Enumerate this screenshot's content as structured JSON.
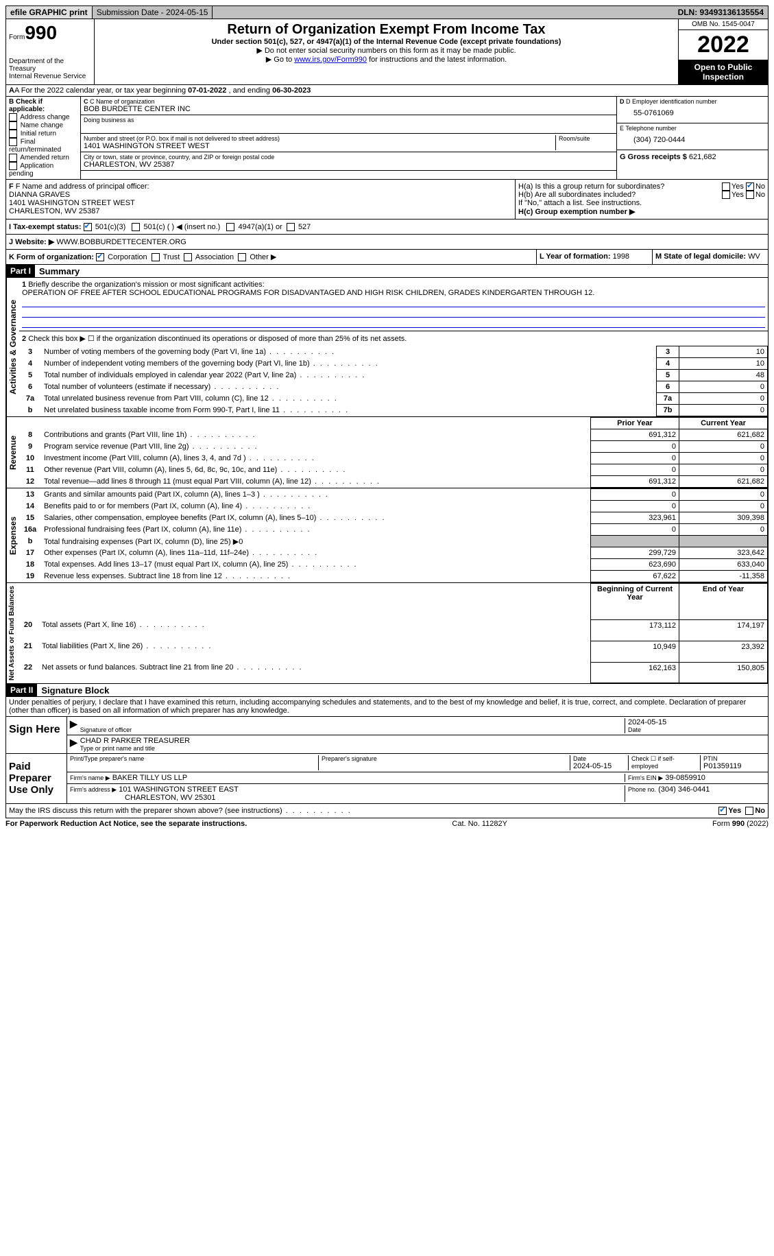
{
  "topbar": {
    "efile": "efile GRAPHIC print",
    "submission": "Submission Date - 2024-05-15",
    "dln": "DLN: 93493136135554"
  },
  "header": {
    "form_label": "Form",
    "form_number": "990",
    "title": "Return of Organization Exempt From Income Tax",
    "subtitle": "Under section 501(c), 527, or 4947(a)(1) of the Internal Revenue Code (except private foundations)",
    "note1": "▶ Do not enter social security numbers on this form as it may be made public.",
    "note2_pre": "▶ Go to ",
    "note2_link": "www.irs.gov/Form990",
    "note2_post": " for instructions and the latest information.",
    "dept": "Department of the Treasury",
    "irs": "Internal Revenue Service",
    "omb": "OMB No. 1545-0047",
    "year": "2022",
    "open": "Open to Public Inspection"
  },
  "rowA": {
    "text_pre": "A For the 2022 calendar year, or tax year beginning ",
    "begin": "07-01-2022",
    "mid": " , and ending ",
    "end": "06-30-2023"
  },
  "colB": {
    "label": "B Check if applicable:",
    "opts": [
      "Address change",
      "Name change",
      "Initial return",
      "Final return/terminated",
      "Amended return",
      "Application pending"
    ]
  },
  "colC": {
    "name_label": "C Name of organization",
    "name": "BOB BURDETTE CENTER INC",
    "dba_label": "Doing business as",
    "street_label": "Number and street (or P.O. box if mail is not delivered to street address)",
    "room_label": "Room/suite",
    "street": "1401 WASHINGTON STREET WEST",
    "city_label": "City or town, state or province, country, and ZIP or foreign postal code",
    "city": "CHARLESTON, WV  25387"
  },
  "colD": {
    "ein_label": "D Employer identification number",
    "ein": "55-0761069",
    "phone_label": "E Telephone number",
    "phone": "(304) 720-0444",
    "gross_label": "G Gross receipts $",
    "gross": "621,682"
  },
  "rowF": {
    "label": "F Name and address of principal officer:",
    "name": "DIANNA GRAVES",
    "addr1": "1401 WASHINGTON STREET WEST",
    "addr2": "CHARLESTON, WV  25387"
  },
  "rowH": {
    "ha": "H(a) Is this a group return for subordinates?",
    "hb": "H(b) Are all subordinates included?",
    "hb_note": "If \"No,\" attach a list. See instructions.",
    "hc": "H(c) Group exemption number ▶",
    "yes": "Yes",
    "no": "No"
  },
  "rowI": {
    "label": "I    Tax-exempt status:",
    "o1": "501(c)(3)",
    "o2": "501(c) (   ) ◀ (insert no.)",
    "o3": "4947(a)(1) or",
    "o4": "527"
  },
  "rowJ": {
    "label": "J   Website: ▶",
    "value": "WWW.BOBBURDETTECENTER.ORG"
  },
  "rowK": {
    "label": "K Form of organization:",
    "corp": "Corporation",
    "trust": "Trust",
    "assoc": "Association",
    "other": "Other ▶"
  },
  "rowL": {
    "label": "L Year of formation:",
    "value": "1998"
  },
  "rowM": {
    "label": "M State of legal domicile:",
    "value": "WV"
  },
  "part1": {
    "header": "Part I",
    "title": "Summary",
    "q1_label": "Briefly describe the organization's mission or most significant activities:",
    "q1_text": "OPERATION OF FREE AFTER SCHOOL EDUCATIONAL PROGRAMS FOR DISADVANTAGED AND HIGH RISK CHILDREN, GRADES KINDERGARTEN THROUGH 12.",
    "q2": "Check this box ▶ ☐ if the organization discontinued its operations or disposed of more than 25% of its net assets.",
    "side_gov": "Activities & Governance",
    "side_rev": "Revenue",
    "side_exp": "Expenses",
    "side_net": "Net Assets or Fund Balances",
    "rows_gov": [
      {
        "n": "3",
        "t": "Number of voting members of the governing body (Part VI, line 1a)",
        "b": "3",
        "v": "10"
      },
      {
        "n": "4",
        "t": "Number of independent voting members of the governing body (Part VI, line 1b)",
        "b": "4",
        "v": "10"
      },
      {
        "n": "5",
        "t": "Total number of individuals employed in calendar year 2022 (Part V, line 2a)",
        "b": "5",
        "v": "48"
      },
      {
        "n": "6",
        "t": "Total number of volunteers (estimate if necessary)",
        "b": "6",
        "v": "0"
      },
      {
        "n": "7a",
        "t": "Total unrelated business revenue from Part VIII, column (C), line 12",
        "b": "7a",
        "v": "0"
      },
      {
        "n": "b",
        "t": "Net unrelated business taxable income from Form 990-T, Part I, line 11",
        "b": "7b",
        "v": "0"
      }
    ],
    "col_prior": "Prior Year",
    "col_current": "Current Year",
    "rows_rev": [
      {
        "n": "8",
        "t": "Contributions and grants (Part VIII, line 1h)",
        "p": "691,312",
        "c": "621,682"
      },
      {
        "n": "9",
        "t": "Program service revenue (Part VIII, line 2g)",
        "p": "0",
        "c": "0"
      },
      {
        "n": "10",
        "t": "Investment income (Part VIII, column (A), lines 3, 4, and 7d )",
        "p": "0",
        "c": "0"
      },
      {
        "n": "11",
        "t": "Other revenue (Part VIII, column (A), lines 5, 6d, 8c, 9c, 10c, and 11e)",
        "p": "0",
        "c": "0"
      },
      {
        "n": "12",
        "t": "Total revenue—add lines 8 through 11 (must equal Part VIII, column (A), line 12)",
        "p": "691,312",
        "c": "621,682"
      }
    ],
    "rows_exp": [
      {
        "n": "13",
        "t": "Grants and similar amounts paid (Part IX, column (A), lines 1–3 )",
        "p": "0",
        "c": "0"
      },
      {
        "n": "14",
        "t": "Benefits paid to or for members (Part IX, column (A), line 4)",
        "p": "0",
        "c": "0"
      },
      {
        "n": "15",
        "t": "Salaries, other compensation, employee benefits (Part IX, column (A), lines 5–10)",
        "p": "323,961",
        "c": "309,398"
      },
      {
        "n": "16a",
        "t": "Professional fundraising fees (Part IX, column (A), line 11e)",
        "p": "0",
        "c": "0"
      },
      {
        "n": "b",
        "t": "Total fundraising expenses (Part IX, column (D), line 25) ▶0",
        "p": "",
        "c": "",
        "shade": true
      },
      {
        "n": "17",
        "t": "Other expenses (Part IX, column (A), lines 11a–11d, 11f–24e)",
        "p": "299,729",
        "c": "323,642"
      },
      {
        "n": "18",
        "t": "Total expenses. Add lines 13–17 (must equal Part IX, column (A), line 25)",
        "p": "623,690",
        "c": "633,040"
      },
      {
        "n": "19",
        "t": "Revenue less expenses. Subtract line 18 from line 12",
        "p": "67,622",
        "c": "-11,358"
      }
    ],
    "col_begin": "Beginning of Current Year",
    "col_end": "End of Year",
    "rows_net": [
      {
        "n": "20",
        "t": "Total assets (Part X, line 16)",
        "p": "173,112",
        "c": "174,197"
      },
      {
        "n": "21",
        "t": "Total liabilities (Part X, line 26)",
        "p": "10,949",
        "c": "23,392"
      },
      {
        "n": "22",
        "t": "Net assets or fund balances. Subtract line 21 from line 20",
        "p": "162,163",
        "c": "150,805"
      }
    ]
  },
  "part2": {
    "header": "Part II",
    "title": "Signature Block",
    "penalty": "Under penalties of perjury, I declare that I have examined this return, including accompanying schedules and statements, and to the best of my knowledge and belief, it is true, correct, and complete. Declaration of preparer (other than officer) is based on all information of which preparer has any knowledge.",
    "sign_here": "Sign Here",
    "sig_officer": "Signature of officer",
    "sig_date": "2024-05-15",
    "sig_date_label": "Date",
    "officer_name": "CHAD R PARKER  TREASURER",
    "officer_name_label": "Type or print name and title",
    "paid": "Paid Preparer Use Only",
    "prep_name_label": "Print/Type preparer's name",
    "prep_sig_label": "Preparer's signature",
    "prep_date_label": "Date",
    "prep_date": "2024-05-15",
    "self_emp": "Check ☐ if self-employed",
    "ptin_label": "PTIN",
    "ptin": "P01359119",
    "firm_name_label": "Firm's name    ▶",
    "firm_name": "BAKER TILLY US LLP",
    "firm_ein_label": "Firm's EIN ▶",
    "firm_ein": "39-0859910",
    "firm_addr_label": "Firm's address ▶",
    "firm_addr1": "101 WASHINGTON STREET EAST",
    "firm_addr2": "CHARLESTON, WV  25301",
    "firm_phone_label": "Phone no.",
    "firm_phone": "(304) 346-0441",
    "discuss": "May the IRS discuss this return with the preparer shown above? (see instructions)"
  },
  "footer": {
    "paperwork": "For Paperwork Reduction Act Notice, see the separate instructions.",
    "cat": "Cat. No. 11282Y",
    "form": "Form 990 (2022)"
  }
}
